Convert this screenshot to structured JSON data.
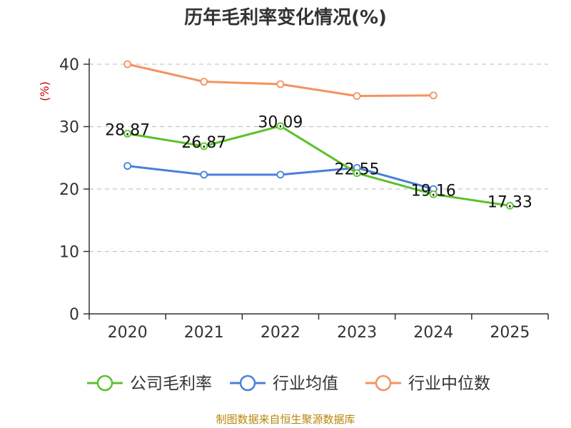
{
  "chart_data": {
    "type": "line",
    "title": "历年毛利率变化情况(%)",
    "ylabel": "(%)",
    "xlabel": "",
    "categories": [
      "2020",
      "2021",
      "2022",
      "2023",
      "2024",
      "2025"
    ],
    "ylim": [
      0,
      40
    ],
    "yticks": [
      0,
      10,
      20,
      30,
      40
    ],
    "grid": true,
    "legend_position": "bottom",
    "series": [
      {
        "name": "公司毛利率",
        "color": "#5cc12a",
        "values": [
          28.87,
          26.87,
          30.09,
          22.55,
          19.16,
          17.33
        ],
        "labels": [
          "28.87",
          "26.87",
          "30.09",
          "22.55",
          "19.16",
          "17.33"
        ]
      },
      {
        "name": "行业均值",
        "color": "#4a7fdc",
        "values": [
          23.7,
          22.3,
          22.3,
          23.4,
          20.0,
          null
        ],
        "labels": []
      },
      {
        "name": "行业中位数",
        "color": "#f4925e",
        "values": [
          40.0,
          37.2,
          36.8,
          34.9,
          35.0,
          null
        ],
        "labels": []
      }
    ]
  },
  "source": "制图数据来自恒生聚源数据库"
}
